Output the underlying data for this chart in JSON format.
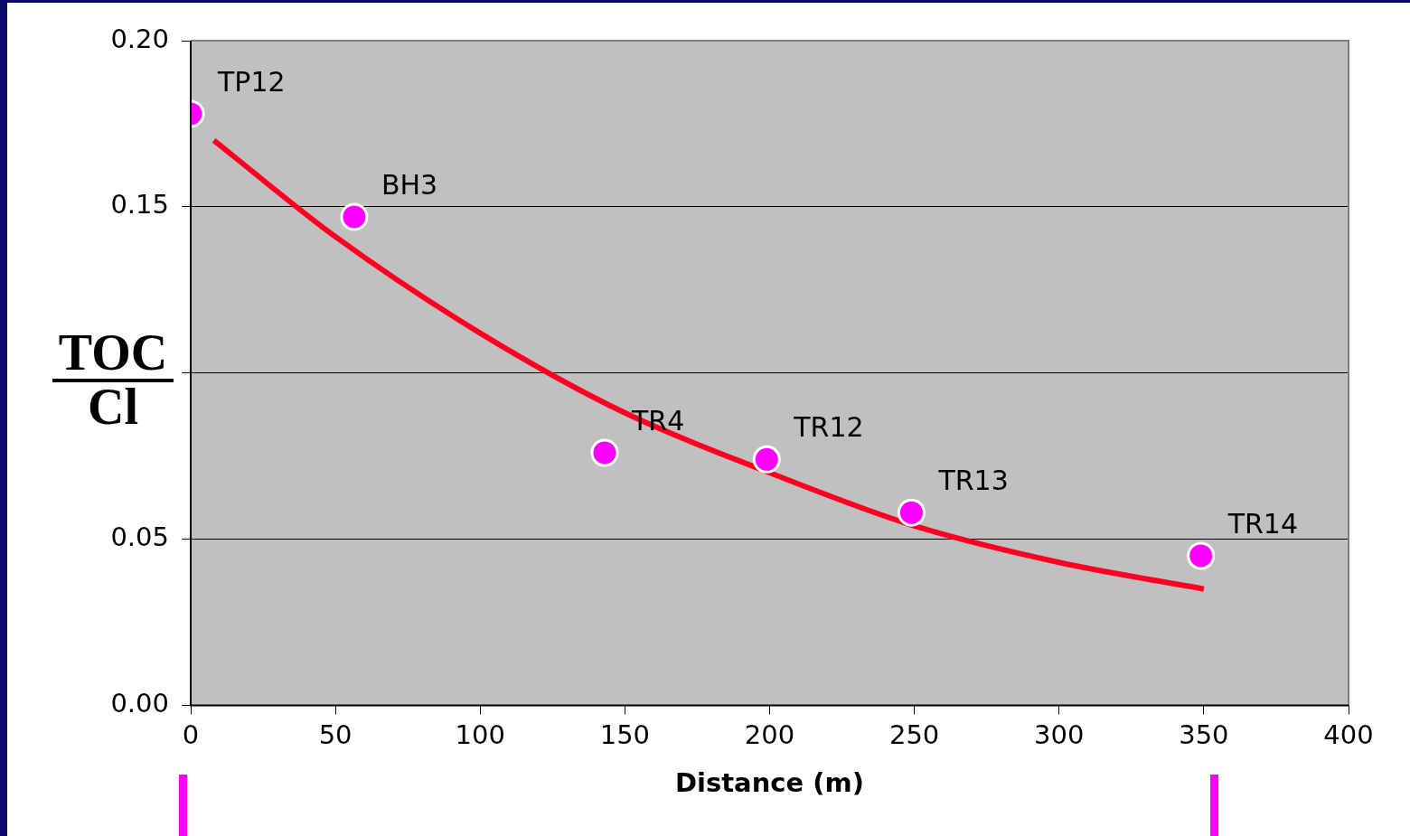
{
  "chart_data": {
    "type": "scatter",
    "xlabel": "Distance (m)",
    "ylabel": "TOC\nCl",
    "xlim": [
      0,
      400
    ],
    "xticks": [
      0,
      50,
      100,
      150,
      200,
      250,
      300,
      350,
      400
    ],
    "ylim": [
      0,
      0.2
    ],
    "yticks": [
      {
        "value": 0,
        "label": "0.00"
      },
      {
        "value": 0.05,
        "label": "0.05"
      },
      {
        "value": 0.1,
        "label": null
      },
      {
        "value": 0.15,
        "label": "0.15"
      },
      {
        "value": 0.2,
        "label": "0.20"
      }
    ],
    "grid": "y",
    "legend": false,
    "series": [
      {
        "marker": "circle",
        "color": "#ff00ff",
        "x": [
          0,
          56.5,
          143,
          199,
          249,
          349
        ],
        "values": [
          0.178,
          0.147,
          0.076,
          0.074,
          0.058,
          0.045
        ]
      },
      {
        "type": "line",
        "marker": "none",
        "color": "#ff0022",
        "x": [
          8,
          50,
          100,
          150,
          200,
          250,
          300,
          350
        ],
        "values": [
          0.17,
          0.141,
          0.112,
          0.088,
          0.07,
          0.054,
          0.043,
          0.035
        ]
      }
    ],
    "annotations": [
      {
        "text": "TP12",
        "x": 0,
        "y": 0.178
      },
      {
        "text": "BH3",
        "x": 56.5,
        "y": 0.147
      },
      {
        "text": "TR4",
        "x": 143,
        "y": 0.076
      },
      {
        "text": "TR12",
        "x": 199,
        "y": 0.074
      },
      {
        "text": "TR13",
        "x": 249,
        "y": 0.058
      },
      {
        "text": "TR14",
        "x": 349,
        "y": 0.045
      }
    ]
  }
}
